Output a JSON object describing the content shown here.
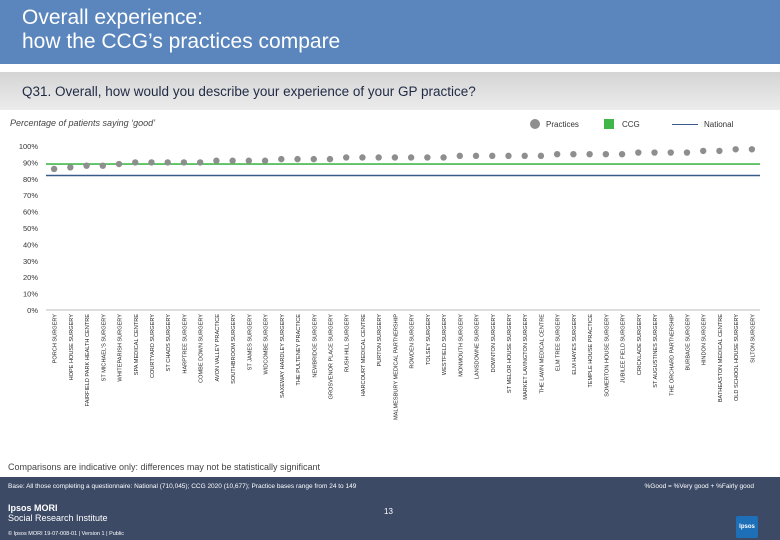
{
  "title": "Overall experience:\nhow the CCG’s practices compare",
  "question": "Q31. Overall, how would you describe your experience of your GP practice?",
  "subtitle": "Percentage of patients saying ‘good’",
  "legend": {
    "practices": "Practices",
    "ccg": "CCG",
    "national": "National"
  },
  "note": "Comparisons are indicative only: differences may not be statistically significant",
  "base": "Base: All those completing a questionnaire: National (710,045); CCG 2020 (10,677); Practice bases range from 24 to 149",
  "definition": "%Good = %Very good + %Fairly good",
  "logo": {
    "line1": "Ipsos MORI",
    "line2": "Social Research Institute"
  },
  "page_number": "13",
  "copyright": "© Ipsos MORI    19-07-008-01 | Version 1 | Public",
  "ipsos_badge": "Ipsos",
  "colors": {
    "practice_marker": "#8e8e8e",
    "ccg_bar": "#41b649",
    "national_line": "#3a5a8c",
    "header": "#5a86bd",
    "footer": "#3c4a66"
  },
  "chart_data": {
    "type": "scatter",
    "ylim": [
      0,
      100
    ],
    "yticks": [
      "0%",
      "10%",
      "20%",
      "30%",
      "40%",
      "50%",
      "60%",
      "70%",
      "80%",
      "90%",
      "100%"
    ],
    "grid": false,
    "legend_position": "top-right",
    "categories": [
      "PORCH SURGERY",
      "HOPE HOUSE SURGERY",
      "FAIRFIELD PARK HEALTH CENTRE",
      "ST MICHAEL'S SURGERY",
      "WHITEPARISH SURGERY",
      "SPA MEDICAL CENTRE",
      "COURTYARD SURGERY",
      "ST CHADS SURGERY",
      "HARPTREE SURGERY",
      "COMBE DOWN SURGERY",
      "AVON VALLEY PRACTICE",
      "SOUTHBROOM SURGERY",
      "ST JAMES SURGERY",
      "WIDCOMBE SURGERY",
      "SAXEWAY HARDLEY SURGERY",
      "THE PULTENEY PRACTICE",
      "NEWBRIDGE SURGERY",
      "GROSVENOR PLACE SURGERY",
      "RUSH HILL SURGERY",
      "HARCOURT MEDICAL CENTRE",
      "PURTON SURGERY",
      "MALMESBURY MEDICAL PARTNERSHIP",
      "ROWDEN SURGERY",
      "TOLSEY SURGERY",
      "WESTFIELD SURGERY",
      "MONMOUTH SURGERY",
      "LANSDOWNE SURGERY",
      "DOWNTON SURGERY",
      "ST MELOR HOUSE SURGERY",
      "MARKET LAVINGTON SURGERY",
      "THE LAWN MEDICAL CENTRE",
      "ELM TREE SURGERY",
      "ELM HAYES SURGERY",
      "TEMPLE HOUSE PRACTICE",
      "SOMERTON HOUSE SURGERY",
      "JUBILEE FIELD SURGERY",
      "CRICKLADE SURGERY",
      "ST AUGUSTINES SURGERY",
      "THE ORCHARD PARTNERSHIP",
      "BURBAGE SURGERY",
      "HINDON SURGERY",
      "BATHEASTON MEDICAL CENTRE",
      "OLD SCHOOL HOUSE SURGERY",
      "SILTON SURGERY"
    ],
    "series": [
      {
        "name": "Practices",
        "values": [
          86,
          87,
          88,
          88,
          89,
          90,
          90,
          90,
          90,
          90,
          91,
          91,
          91,
          91,
          92,
          92,
          92,
          92,
          93,
          93,
          93,
          93,
          93,
          93,
          93,
          94,
          94,
          94,
          94,
          94,
          94,
          95,
          95,
          95,
          95,
          95,
          96,
          96,
          96,
          96,
          97,
          97,
          98,
          98
        ]
      },
      {
        "name": "CCG",
        "values": [
          89
        ]
      },
      {
        "name": "National",
        "values": [
          82
        ]
      }
    ]
  }
}
